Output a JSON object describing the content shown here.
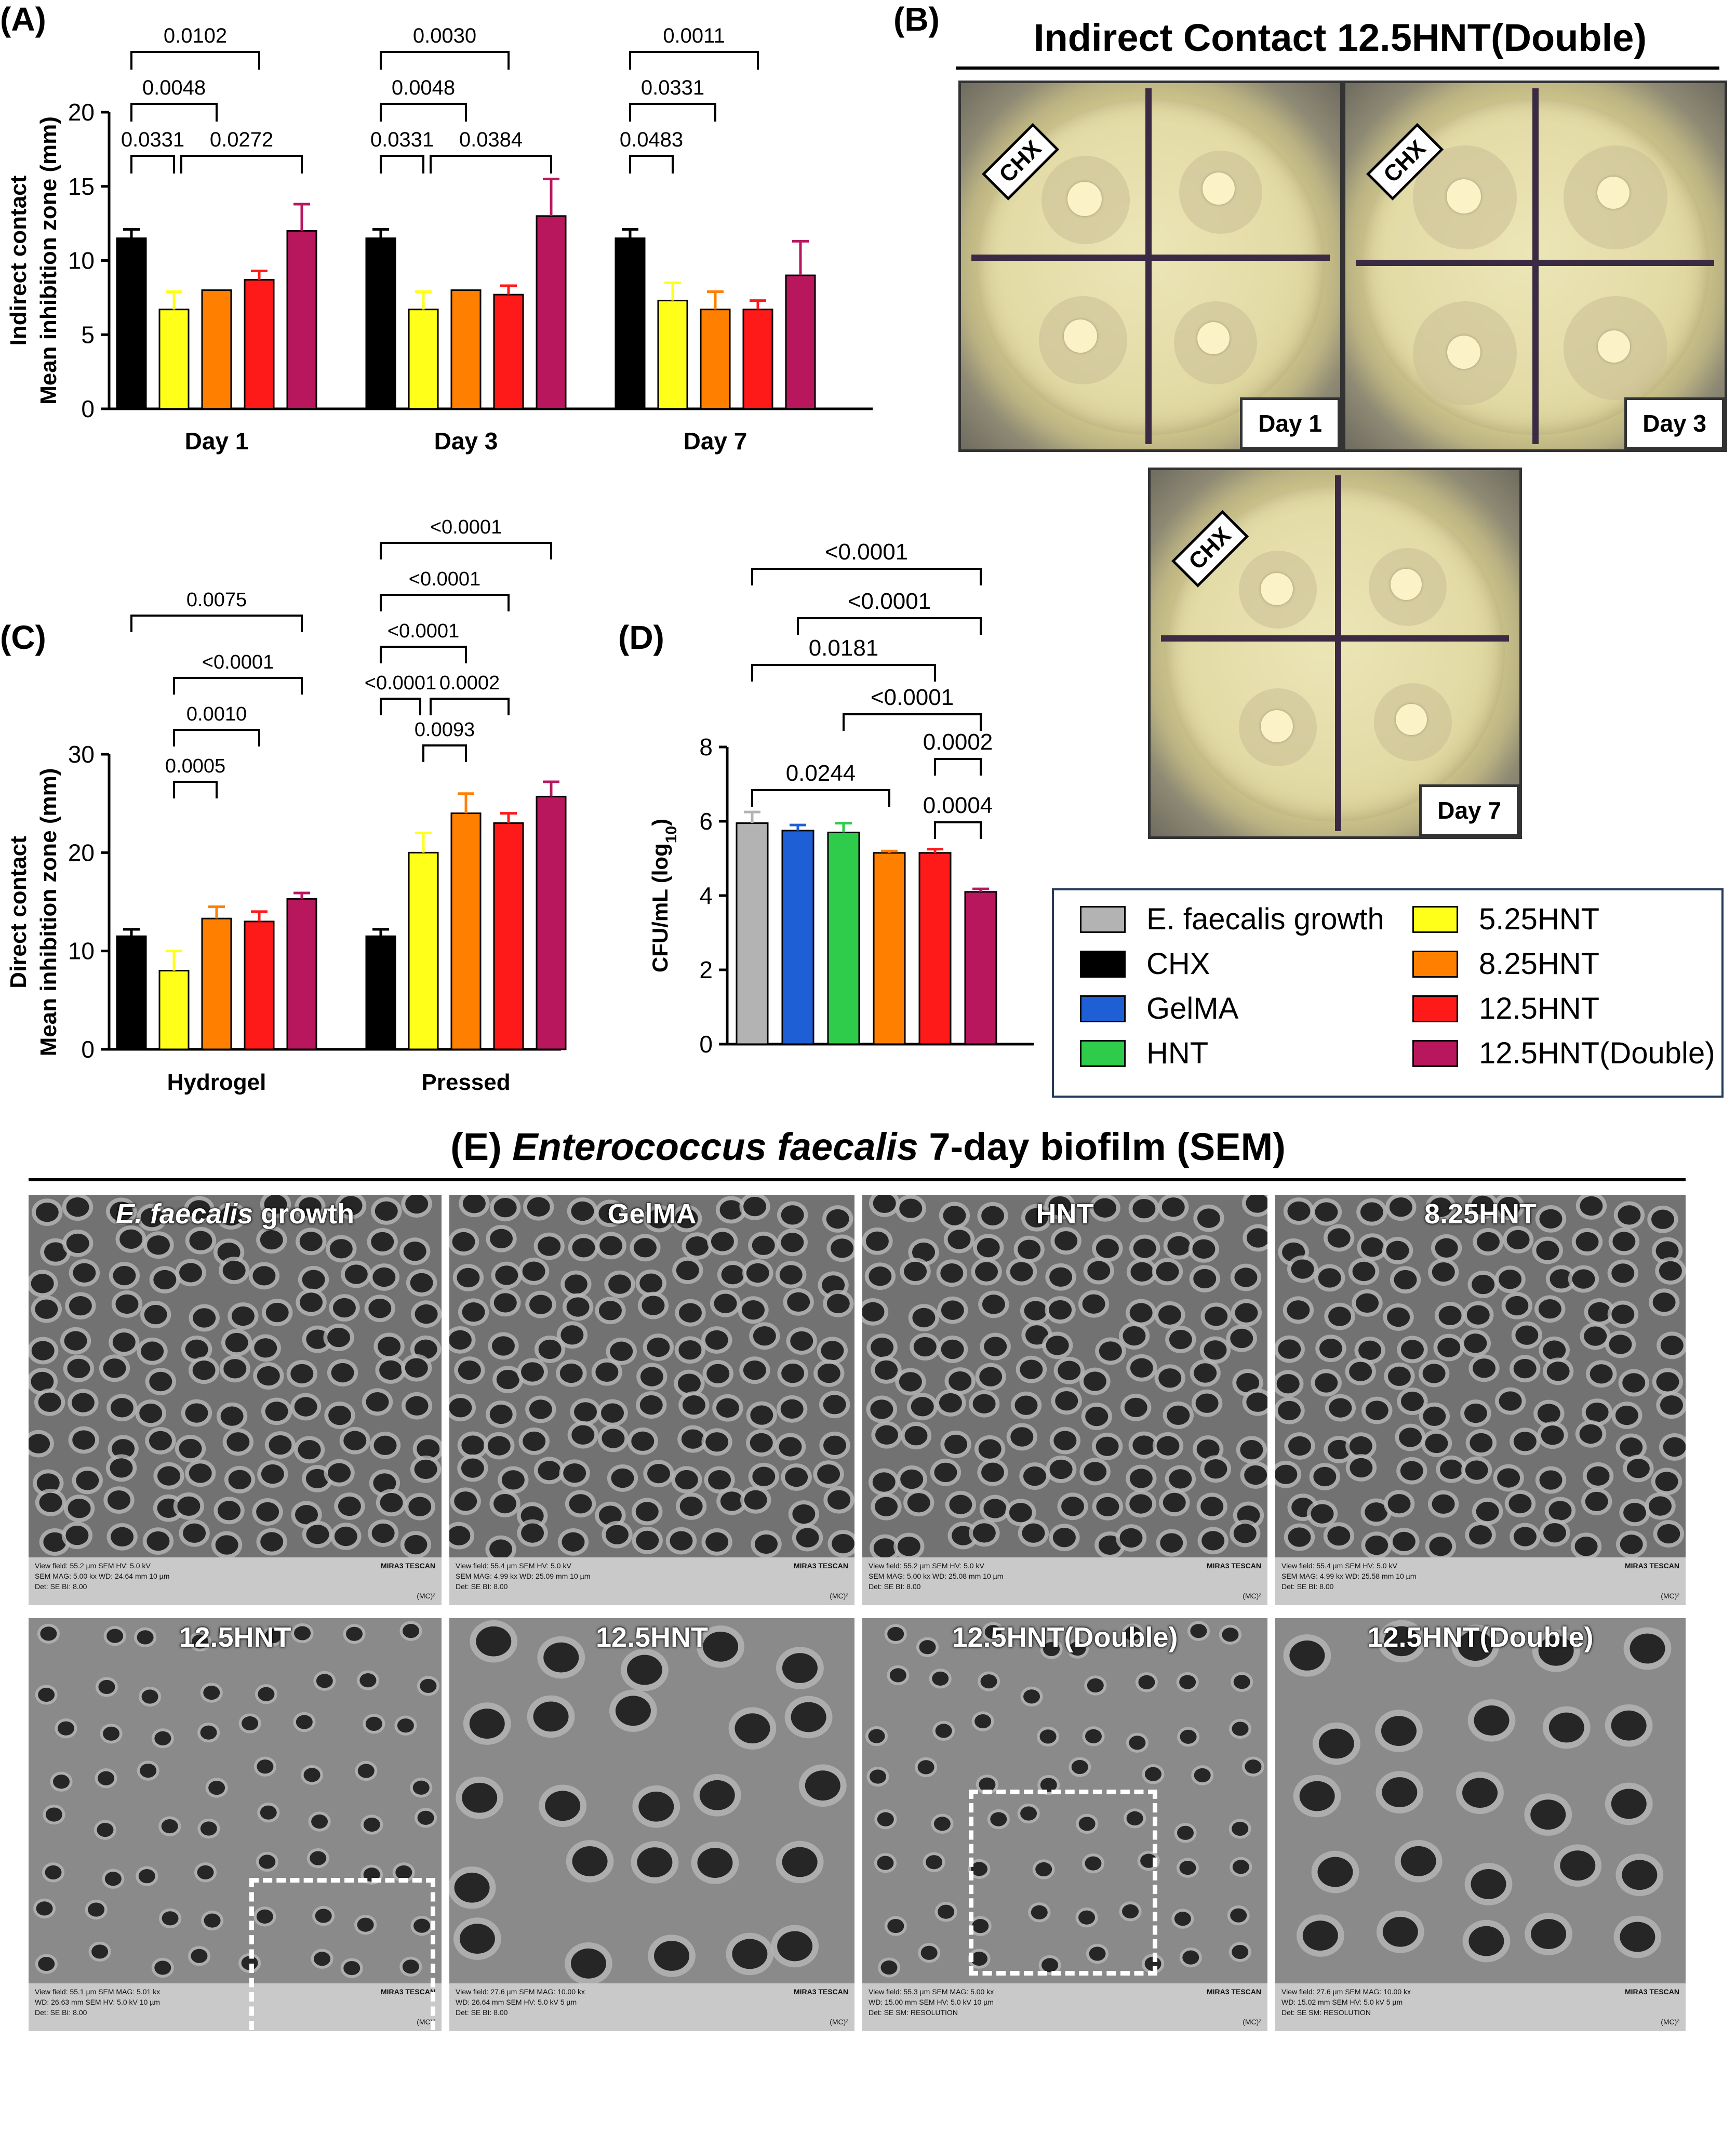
{
  "panels": {
    "A": "(A)",
    "B": "(B)",
    "C": "(C)",
    "D": "(D)"
  },
  "panel_b": {
    "title": "Indirect Contact 12.5HNT(Double)",
    "tag": "CHX",
    "days": [
      "Day 1",
      "Day 3",
      "Day 7"
    ]
  },
  "panel_e": {
    "title_prefix": "(E) ",
    "title_italic": "Enterococcus faecalis",
    "title_suffix": " 7-day biofilm (SEM)",
    "images": [
      {
        "label": "E. faecalis growth",
        "info1": "View field: 55.2 µm   SEM HV: 5.0 kV",
        "info2": "SEM MAG: 5.00 kx   WD: 24.64 mm   10 µm",
        "info3": "Det: SE   BI: 8.00"
      },
      {
        "label": "GelMA",
        "info1": "View field: 55.4 µm   SEM HV: 5.0 kV",
        "info2": "SEM MAG: 4.99 kx   WD: 25.09 mm   10 µm",
        "info3": "Det: SE   BI: 8.00"
      },
      {
        "label": "HNT",
        "info1": "View field: 55.2 µm   SEM HV: 5.0 kV",
        "info2": "SEM MAG: 5.00 kx   WD: 25.08 mm   10 µm",
        "info3": "Det: SE   BI: 8.00"
      },
      {
        "label": "8.25HNT",
        "info1": "View field: 55.4 µm   SEM HV: 5.0 kV",
        "info2": "SEM MAG: 4.99 kx   WD: 25.58 mm   10 µm",
        "info3": "Det: SE   BI: 8.00"
      },
      {
        "label": "12.5HNT",
        "info1": "View field: 55.1 µm   SEM MAG: 5.01 kx",
        "info2": "WD: 26.63 mm   SEM HV: 5.0 kV   10 µm",
        "info3": "Det: SE   BI: 8.00"
      },
      {
        "label": "12.5HNT",
        "info1": "View field: 27.6 µm   SEM MAG: 10.00 kx",
        "info2": "WD: 26.64 mm   SEM HV: 5.0 kV   5 µm",
        "info3": "Det: SE   BI: 8.00"
      },
      {
        "label": "12.5HNT(Double)",
        "info1": "View field: 55.3 µm   SEM MAG: 5.00 kx",
        "info2": "WD: 15.00 mm   SEM HV: 5.0 kV   10 µm",
        "info3": "Det: SE   SM: RESOLUTION"
      },
      {
        "label": "12.5HNT(Double)",
        "info1": "View field: 27.6 µm   SEM MAG: 10.00 kx",
        "info2": "WD: 15.02 mm   SEM HV: 5.0 kV   5 µm",
        "info3": "Det: SE   SM: RESOLUTION"
      }
    ],
    "brand": "MIRA3 TESCAN",
    "mc": "(MC)²"
  },
  "legend": {
    "items": [
      {
        "label": "E. faecalis growth",
        "color": "#b3b3b3"
      },
      {
        "label": "CHX",
        "color": "#000000"
      },
      {
        "label": "GelMA",
        "color": "#1f5fd6"
      },
      {
        "label": "HNT",
        "color": "#2ecc4a"
      },
      {
        "label": "5.25HNT",
        "color": "#ffff1a"
      },
      {
        "label": "8.25HNT",
        "color": "#ff8000"
      },
      {
        "label": "12.5HNT",
        "color": "#ff1a1a"
      },
      {
        "label": "12.5HNT(Double)",
        "color": "#b8175e"
      }
    ]
  },
  "chart_data": [
    {
      "id": "A",
      "type": "bar",
      "ylabel_lines": [
        "Indirect contact",
        "Mean inhibition zone (mm)"
      ],
      "ylim": [
        0,
        20
      ],
      "yticks": [
        0,
        5,
        10,
        15,
        20
      ],
      "categories": [
        "Day 1",
        "Day 3",
        "Day 7"
      ],
      "series": [
        {
          "name": "CHX",
          "color": "#000000",
          "values": [
            11.5,
            11.5,
            11.5
          ],
          "errors": [
            0.6,
            0.6,
            0.6
          ]
        },
        {
          "name": "5.25HNT",
          "color": "#ffff1a",
          "values": [
            6.7,
            6.7,
            7.3
          ],
          "errors": [
            1.2,
            1.2,
            1.2
          ]
        },
        {
          "name": "8.25HNT",
          "color": "#ff8000",
          "values": [
            8.0,
            8.0,
            6.7
          ],
          "errors": [
            0,
            0,
            1.2
          ]
        },
        {
          "name": "12.5HNT",
          "color": "#ff1a1a",
          "values": [
            8.7,
            7.7,
            6.7
          ],
          "errors": [
            0.6,
            0.6,
            0.6
          ]
        },
        {
          "name": "12.5HNT(Double)",
          "color": "#b8175e",
          "values": [
            12.0,
            13.0,
            9.0
          ],
          "errors": [
            1.8,
            2.5,
            2.3
          ]
        }
      ],
      "comparisons": [
        {
          "group": 0,
          "from": 0,
          "to": 1,
          "label": "0.0331"
        },
        {
          "group": 0,
          "from": 1,
          "to": 4,
          "label": "0.0272"
        },
        {
          "group": 0,
          "from": 0,
          "to": 2,
          "label": "0.0048"
        },
        {
          "group": 0,
          "from": 0,
          "to": 3,
          "label": "0.0102"
        },
        {
          "group": 1,
          "from": 0,
          "to": 1,
          "label": "0.0331"
        },
        {
          "group": 1,
          "from": 1,
          "to": 4,
          "label": "0.0384"
        },
        {
          "group": 1,
          "from": 0,
          "to": 2,
          "label": "0.0048"
        },
        {
          "group": 1,
          "from": 0,
          "to": 3,
          "label": "0.0030"
        },
        {
          "group": 2,
          "from": 0,
          "to": 1,
          "label": "0.0483"
        },
        {
          "group": 2,
          "from": 0,
          "to": 2,
          "label": "0.0331"
        },
        {
          "group": 2,
          "from": 0,
          "to": 3,
          "label": "0.0011"
        }
      ]
    },
    {
      "id": "C",
      "type": "bar",
      "ylabel_lines": [
        "Direct contact",
        "Mean inhibition zone (mm)"
      ],
      "ylim": [
        0,
        30
      ],
      "yticks": [
        0,
        10,
        20,
        30
      ],
      "categories": [
        "Hydrogel",
        "Pressed"
      ],
      "series": [
        {
          "name": "CHX",
          "color": "#000000",
          "values": [
            11.5,
            11.5
          ],
          "errors": [
            0.7,
            0.7
          ]
        },
        {
          "name": "5.25HNT",
          "color": "#ffff1a",
          "values": [
            8.0,
            20.0
          ],
          "errors": [
            2.0,
            2.0
          ]
        },
        {
          "name": "8.25HNT",
          "color": "#ff8000",
          "values": [
            13.3,
            24.0
          ],
          "errors": [
            1.2,
            2.0
          ]
        },
        {
          "name": "12.5HNT",
          "color": "#ff1a1a",
          "values": [
            13.0,
            23.0
          ],
          "errors": [
            1.0,
            1.0
          ]
        },
        {
          "name": "12.5HNT(Double)",
          "color": "#b8175e",
          "values": [
            15.3,
            25.7
          ],
          "errors": [
            0.6,
            1.5
          ]
        }
      ],
      "comparisons": [
        {
          "group": 0,
          "from": 1,
          "to": 2,
          "label": "0.0005"
        },
        {
          "group": 0,
          "from": 1,
          "to": 3,
          "label": "0.0010"
        },
        {
          "group": 0,
          "from": 1,
          "to": 4,
          "label": "<0.0001"
        },
        {
          "group": 0,
          "from": 0,
          "to": 4,
          "label": "0.0075"
        },
        {
          "group": 1,
          "from": 1,
          "to": 2,
          "label": "0.0093"
        },
        {
          "group": 1,
          "from": 0,
          "to": 1,
          "label": "<0.0001"
        },
        {
          "group": 1,
          "from": 1,
          "to": 3,
          "label": "0.0002"
        },
        {
          "group": 1,
          "from": 0,
          "to": 2,
          "label": "<0.0001"
        },
        {
          "group": 1,
          "from": 0,
          "to": 3,
          "label": "<0.0001"
        },
        {
          "group": 1,
          "from": 0,
          "to": 4,
          "label": "<0.0001"
        }
      ]
    },
    {
      "id": "D",
      "type": "bar",
      "ylabel": "CFU/mL (log",
      "ylabel_sub": "10",
      "ylabel_end": ")",
      "ylim": [
        0,
        8
      ],
      "yticks": [
        0,
        2,
        4,
        6,
        8
      ],
      "categories": [
        "E. faecalis growth",
        "GelMA",
        "HNT",
        "8.25HNT",
        "12.5HNT",
        "12.5HNT(Double)"
      ],
      "values": [
        5.95,
        5.75,
        5.7,
        5.15,
        5.15,
        4.1
      ],
      "errors": [
        0.3,
        0.15,
        0.25,
        0.05,
        0.1,
        0.08
      ],
      "colors": [
        "#b3b3b3",
        "#1f5fd6",
        "#2ecc4a",
        "#ff8000",
        "#ff1a1a",
        "#b8175e"
      ],
      "comparisons": [
        {
          "from": 4,
          "to": 5,
          "label": "0.0004"
        },
        {
          "from": 0,
          "to": 3,
          "label": "0.0244"
        },
        {
          "from": 4,
          "to": 5,
          "label": "0.0002",
          "level": 1
        },
        {
          "from": 2,
          "to": 5,
          "label": "<0.0001"
        },
        {
          "from": 0,
          "to": 4,
          "label": "0.0181"
        },
        {
          "from": 1,
          "to": 5,
          "label": "<0.0001"
        },
        {
          "from": 0,
          "to": 5,
          "label": "<0.0001"
        }
      ]
    }
  ]
}
